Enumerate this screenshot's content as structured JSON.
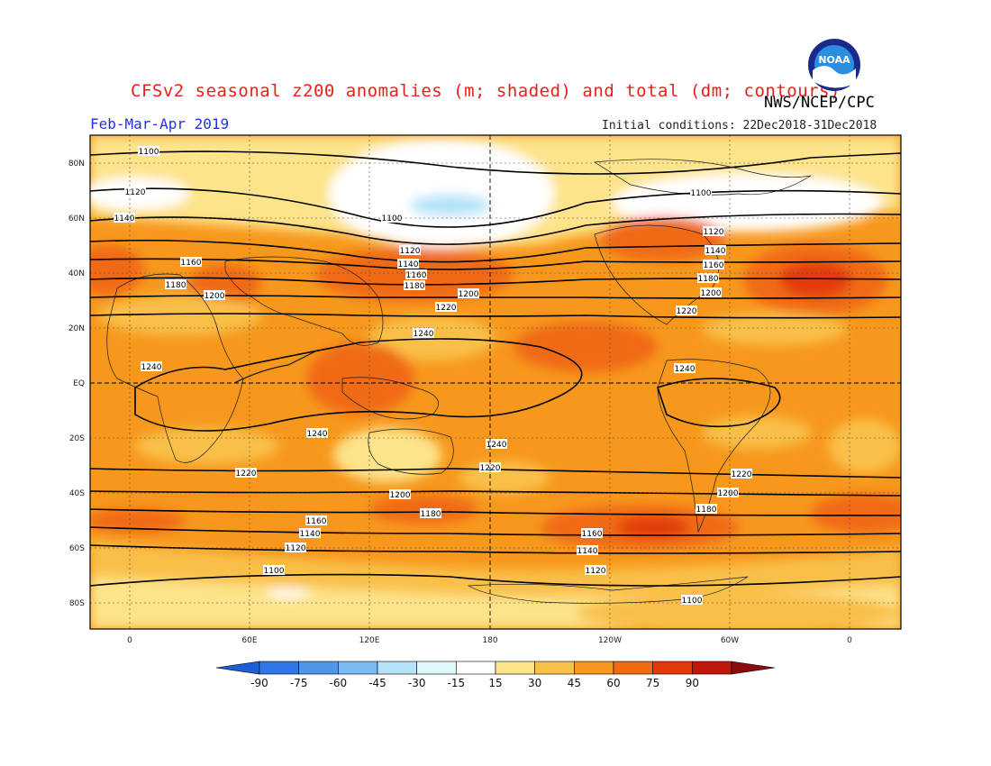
{
  "title": "CFSv2 seasonal z200 anomalies (m; shaded) and total (dm; contours)",
  "period": "Feb-Mar-Apr 2019",
  "organization": "NWS/NCEP/CPC",
  "initial_conditions": "Initial conditions: 22Dec2018-31Dec2018",
  "logo_text": "NOAA",
  "lat_labels": [
    "80N",
    "60N",
    "40N",
    "20N",
    "EQ",
    "20S",
    "40S",
    "60S",
    "80S"
  ],
  "lon_labels": [
    "0",
    "60E",
    "120E",
    "180",
    "120W",
    "60W",
    "0"
  ],
  "colorbar": {
    "ticks": [
      "-90",
      "-75",
      "-60",
      "-45",
      "-30",
      "-15",
      "15",
      "30",
      "45",
      "60",
      "75",
      "90"
    ],
    "colors": [
      "#1f5fd6",
      "#2f78e6",
      "#4f96ea",
      "#7cb8f2",
      "#b4e2f8",
      "#dff7fb",
      "#ffffff",
      "#fde38a",
      "#f9c04a",
      "#f7981d",
      "#f06a12",
      "#e23a0b",
      "#c0170b",
      "#8a0d0d"
    ]
  },
  "contour_labels": [
    "1100",
    "1120",
    "1140",
    "1160",
    "1180",
    "1200",
    "1220",
    "1240"
  ]
}
